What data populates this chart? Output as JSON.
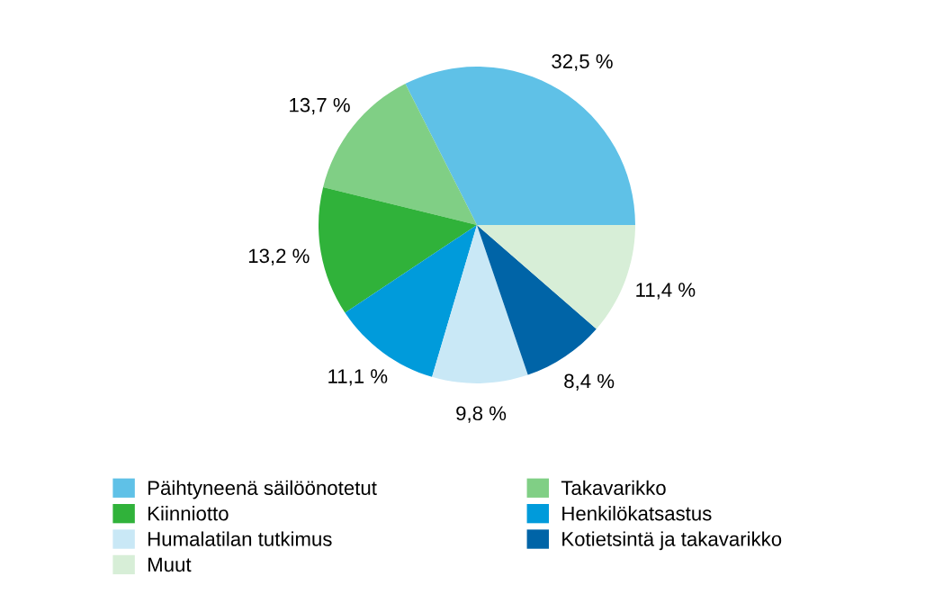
{
  "chart_data": {
    "type": "pie",
    "categories": [
      "Päihtyneenä säilöönotetut",
      "Takavarikko",
      "Kiinniotto",
      "Henkilökatsastus",
      "Humalatilan tutkimus",
      "Kotietsintä ja takavarikko",
      "Muut"
    ],
    "values": [
      32.5,
      13.7,
      13.2,
      11.1,
      9.8,
      8.4,
      11.4
    ],
    "value_labels": [
      "32,5 %",
      "13,7 %",
      "13,2 %",
      "11,1 %",
      "9,8 %",
      "8,4 %",
      "11,4 %"
    ],
    "colors": [
      "#5fc1e7",
      "#80cf85",
      "#30b23a",
      "#009bdb",
      "#c9e8f6",
      "#0064a7",
      "#d7eed7"
    ],
    "legend": "bottom"
  }
}
